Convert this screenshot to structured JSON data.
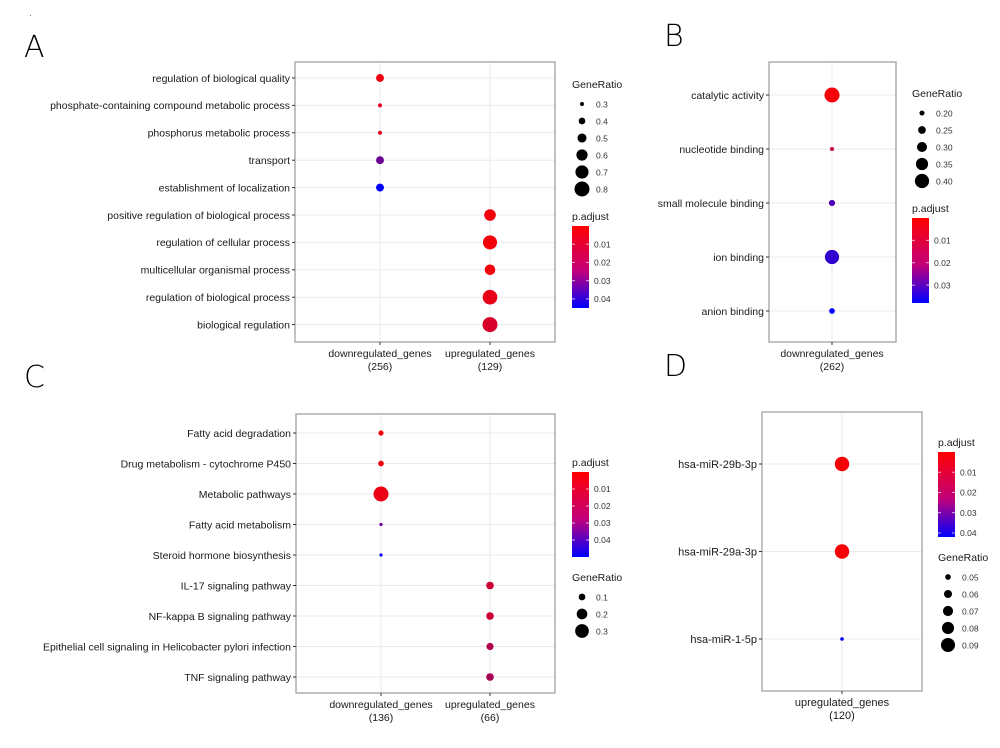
{
  "figure": {
    "panel_labels": [
      "A",
      "B",
      "C",
      "D"
    ]
  },
  "chart_data": [
    {
      "panel": "A",
      "type": "scatter",
      "subtype": "dotplot",
      "title": "",
      "xlabel": "",
      "ylabel": "",
      "categories_x": [
        {
          "name": "downregulated_genes",
          "count": "(256)"
        },
        {
          "name": "upregulated_genes",
          "count": "(129)"
        }
      ],
      "categories_y": [
        "regulation of biological quality",
        "phosphate-containing compound metabolic process",
        "phosphorus metabolic process",
        "transport",
        "establishment of localization",
        "positive regulation of biological process",
        "regulation of cellular process",
        "multicellular organismal process",
        "regulation of biological process",
        "biological regulation"
      ],
      "points": [
        {
          "x": "downregulated_genes",
          "y": "regulation of biological quality",
          "gene_ratio": 0.45,
          "p_adjust": 0.003
        },
        {
          "x": "downregulated_genes",
          "y": "phosphate-containing compound metabolic process",
          "gene_ratio": 0.3,
          "p_adjust": 0.005
        },
        {
          "x": "downregulated_genes",
          "y": "phosphorus metabolic process",
          "gene_ratio": 0.3,
          "p_adjust": 0.005
        },
        {
          "x": "downregulated_genes",
          "y": "transport",
          "gene_ratio": 0.45,
          "p_adjust": 0.026
        },
        {
          "x": "downregulated_genes",
          "y": "establishment of localization",
          "gene_ratio": 0.45,
          "p_adjust": 0.045
        },
        {
          "x": "upregulated_genes",
          "y": "positive regulation of biological process",
          "gene_ratio": 0.62,
          "p_adjust": 0.002
        },
        {
          "x": "upregulated_genes",
          "y": "regulation of cellular process",
          "gene_ratio": 0.75,
          "p_adjust": 0.002
        },
        {
          "x": "upregulated_genes",
          "y": "multicellular organismal process",
          "gene_ratio": 0.57,
          "p_adjust": 0.002
        },
        {
          "x": "upregulated_genes",
          "y": "regulation of biological process",
          "gene_ratio": 0.78,
          "p_adjust": 0.004
        },
        {
          "x": "upregulated_genes",
          "y": "biological regulation",
          "gene_ratio": 0.8,
          "p_adjust": 0.007
        }
      ],
      "legend_size": {
        "title": "GeneRatio",
        "values": [
          0.3,
          0.4,
          0.5,
          0.6,
          0.7,
          0.8
        ],
        "labels": [
          "0.3",
          "0.4",
          "0.5",
          "0.6",
          "0.7",
          "0.8"
        ]
      },
      "legend_color": {
        "title": "p.adjust",
        "range": [
          0.0,
          0.045
        ],
        "ticks": [
          0.01,
          0.02,
          0.03,
          0.04
        ],
        "labels": [
          "0.01",
          "0.02",
          "0.03",
          "0.04"
        ],
        "low_color": "#ff0000",
        "high_color": "#0000ff"
      },
      "legend_order": [
        "size",
        "color"
      ],
      "legend_position": "right",
      "grid": true
    },
    {
      "panel": "B",
      "type": "scatter",
      "subtype": "dotplot",
      "title": "",
      "xlabel": "",
      "ylabel": "",
      "categories_x": [
        {
          "name": "downregulated_genes",
          "count": "(262)"
        }
      ],
      "categories_y": [
        "catalytic activity",
        "nucleotide binding",
        "small molecule binding",
        "ion binding",
        "anion binding"
      ],
      "points": [
        {
          "x": "downregulated_genes",
          "y": "catalytic activity",
          "gene_ratio": 0.42,
          "p_adjust": 0.001
        },
        {
          "x": "downregulated_genes",
          "y": "nucleotide binding",
          "gene_ratio": 0.18,
          "p_adjust": 0.009
        },
        {
          "x": "downregulated_genes",
          "y": "small molecule binding",
          "gene_ratio": 0.22,
          "p_adjust": 0.027
        },
        {
          "x": "downregulated_genes",
          "y": "ion binding",
          "gene_ratio": 0.4,
          "p_adjust": 0.031
        },
        {
          "x": "downregulated_genes",
          "y": "anion binding",
          "gene_ratio": 0.21,
          "p_adjust": 0.038
        }
      ],
      "legend_size": {
        "title": "GeneRatio",
        "values": [
          0.2,
          0.25,
          0.3,
          0.35,
          0.4
        ],
        "labels": [
          "0.20",
          "0.25",
          "0.30",
          "0.35",
          "0.40"
        ]
      },
      "legend_color": {
        "title": "p.adjust",
        "range": [
          0.0,
          0.038
        ],
        "ticks": [
          0.01,
          0.02,
          0.03
        ],
        "labels": [
          "0.01",
          "0.02",
          "0.03"
        ],
        "low_color": "#ff0000",
        "high_color": "#0000ff"
      },
      "legend_order": [
        "size",
        "color"
      ],
      "legend_position": "right",
      "grid": true
    },
    {
      "panel": "C",
      "type": "scatter",
      "subtype": "dotplot",
      "title": "",
      "xlabel": "",
      "ylabel": "",
      "categories_x": [
        {
          "name": "downregulated_genes",
          "count": "(136)"
        },
        {
          "name": "upregulated_genes",
          "count": "(66)"
        }
      ],
      "categories_y": [
        "Fatty acid degradation",
        "Drug metabolism - cytochrome P450",
        "Metabolic pathways",
        "Fatty acid metabolism",
        "Steroid hormone biosynthesis",
        "IL-17 signaling pathway",
        "NF-kappa B signaling pathway",
        "Epithelial cell signaling in Helicobacter pylori infection",
        "TNF signaling pathway"
      ],
      "points": [
        {
          "x": "downregulated_genes",
          "y": "Fatty acid degradation",
          "gene_ratio": 0.07,
          "p_adjust": 0.002
        },
        {
          "x": "downregulated_genes",
          "y": "Drug metabolism - cytochrome P450",
          "gene_ratio": 0.08,
          "p_adjust": 0.003
        },
        {
          "x": "downregulated_genes",
          "y": "Metabolic pathways",
          "gene_ratio": 0.35,
          "p_adjust": 0.004
        },
        {
          "x": "downregulated_genes",
          "y": "Fatty acid metabolism",
          "gene_ratio": 0.04,
          "p_adjust": 0.03
        },
        {
          "x": "downregulated_genes",
          "y": "Steroid hormone biosynthesis",
          "gene_ratio": 0.04,
          "p_adjust": 0.048
        },
        {
          "x": "upregulated_genes",
          "y": "IL-17 signaling pathway",
          "gene_ratio": 0.12,
          "p_adjust": 0.01
        },
        {
          "x": "upregulated_genes",
          "y": "NF-kappa B signaling pathway",
          "gene_ratio": 0.12,
          "p_adjust": 0.01
        },
        {
          "x": "upregulated_genes",
          "y": "Epithelial cell signaling in Helicobacter pylori infection",
          "gene_ratio": 0.11,
          "p_adjust": 0.015
        },
        {
          "x": "upregulated_genes",
          "y": "TNF signaling pathway",
          "gene_ratio": 0.12,
          "p_adjust": 0.017
        }
      ],
      "legend_size": {
        "title": "GeneRatio",
        "values": [
          0.1,
          0.2,
          0.3
        ],
        "labels": [
          "0.1",
          "0.2",
          "0.3"
        ]
      },
      "legend_color": {
        "title": "p.adjust",
        "range": [
          0.0,
          0.05
        ],
        "ticks": [
          0.01,
          0.02,
          0.03,
          0.04
        ],
        "labels": [
          "0.01",
          "0.02",
          "0.03",
          "0.04"
        ],
        "low_color": "#ff0000",
        "high_color": "#0000ff"
      },
      "legend_order": [
        "color",
        "size"
      ],
      "legend_position": "right",
      "grid": true
    },
    {
      "panel": "D",
      "type": "scatter",
      "subtype": "dotplot",
      "title": "",
      "xlabel": "",
      "ylabel": "",
      "categories_x": [
        {
          "name": "upregulated_genes",
          "count": "(120)"
        }
      ],
      "categories_y": [
        "hsa-miR-29b-3p",
        "hsa-miR-29a-3p",
        "hsa-miR-1-5p"
      ],
      "points": [
        {
          "x": "upregulated_genes",
          "y": "hsa-miR-29b-3p",
          "gene_ratio": 0.092,
          "p_adjust": 0.001
        },
        {
          "x": "upregulated_genes",
          "y": "hsa-miR-29a-3p",
          "gene_ratio": 0.092,
          "p_adjust": 0.001
        },
        {
          "x": "upregulated_genes",
          "y": "hsa-miR-1-5p",
          "gene_ratio": 0.042,
          "p_adjust": 0.042
        }
      ],
      "legend_size": {
        "title": "GeneRatio",
        "values": [
          0.05,
          0.06,
          0.07,
          0.08,
          0.09
        ],
        "labels": [
          "0.05",
          "0.06",
          "0.07",
          "0.08",
          "0.09"
        ]
      },
      "legend_color": {
        "title": "p.adjust",
        "range": [
          0.0,
          0.042
        ],
        "ticks": [
          0.01,
          0.02,
          0.03,
          0.04
        ],
        "labels": [
          "0.01",
          "0.02",
          "0.03",
          "0.04"
        ],
        "low_color": "#ff0000",
        "high_color": "#0000ff"
      },
      "legend_order": [
        "color",
        "size"
      ],
      "legend_position": "right",
      "grid": true
    }
  ]
}
